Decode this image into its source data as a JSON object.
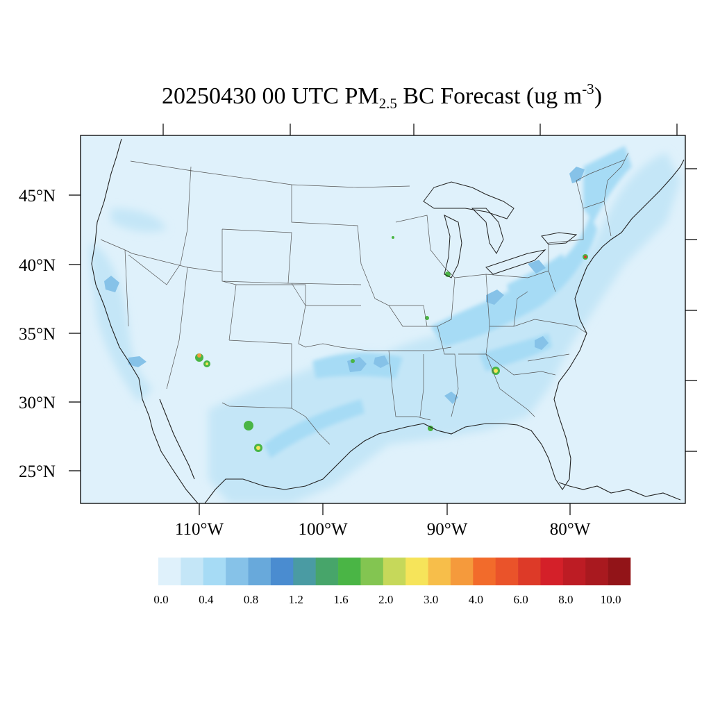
{
  "title": {
    "prefix": "20250430 00 UTC PM",
    "subscript": "2.5",
    "middle": " BC Forecast (ug m",
    "superscript": "-3",
    "suffix": ")"
  },
  "lat_labels": [
    "45°N",
    "40°N",
    "35°N",
    "30°N",
    "25°N"
  ],
  "lon_labels": [
    "110°W",
    "100°W",
    "90°W",
    "80°W"
  ],
  "colorbar": {
    "colors": [
      "#dff1fb",
      "#c4e6f7",
      "#a6dbf5",
      "#86c2e8",
      "#68a9db",
      "#4a8cd0",
      "#4a9ba3",
      "#47a56a",
      "#4ab545",
      "#83c551",
      "#c6d85a",
      "#f6e45a",
      "#f7be4a",
      "#f59a3c",
      "#f26b2b",
      "#ea532a",
      "#dd3a28",
      "#d42029",
      "#bd1c24",
      "#a9191f",
      "#921418"
    ],
    "tick_labels": [
      "0.0",
      "0.4",
      "0.8",
      "1.2",
      "1.6",
      "2.0",
      "3.0",
      "4.0",
      "6.0",
      "8.0",
      "10.0"
    ]
  },
  "map_colors": {
    "background": "#dff1fb",
    "light": "#c4e6f7",
    "medium": "#a6dbf5",
    "moderate": "#86c2e8",
    "high": "#68a9db",
    "hotspot_green": "#4ab545",
    "hotspot_yellow": "#f6e45a",
    "hotspot_orange": "#f59a3c",
    "hotspot_red": "#dd3a28",
    "coast": "#222222",
    "border": "#555555"
  }
}
